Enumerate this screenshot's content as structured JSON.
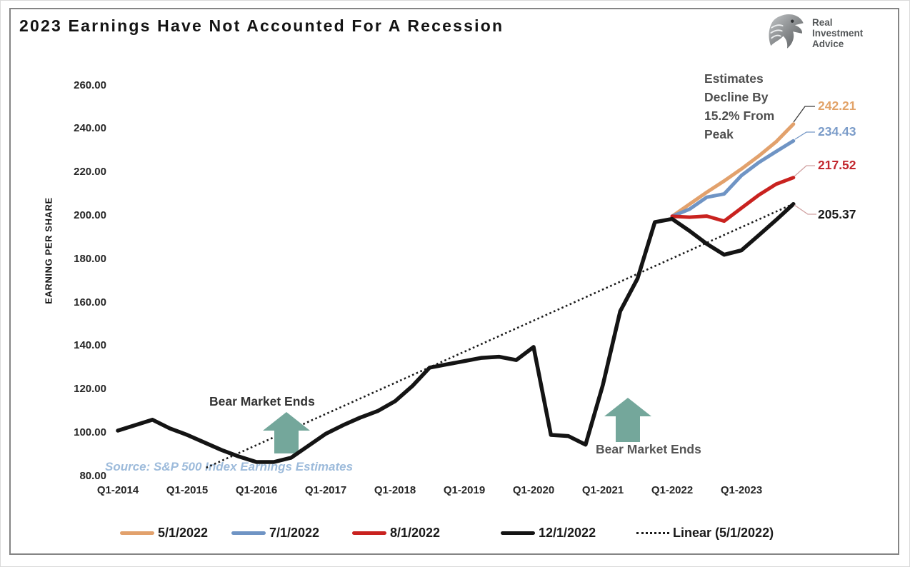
{
  "logo": {
    "name": "Real Investment Advice",
    "lines": [
      "Real",
      "Investment",
      "Advice"
    ]
  },
  "chart_data": {
    "type": "line",
    "title": "2023 Earnings Have Not Accounted For A Recession",
    "ylabel": "EARNING PER SHARE",
    "ylim": [
      80,
      260
    ],
    "grid": false,
    "legend_position": "bottom",
    "x_unit": "quarter",
    "x_start": "Q1-2014",
    "x_end": "Q4-2023",
    "ytick_values": [
      260,
      240,
      220,
      200,
      180,
      160,
      140,
      120,
      100,
      80
    ],
    "ytick_labels": [
      "260.00",
      "240.00",
      "220.00",
      "200.00",
      "180.00",
      "160.00",
      "140.00",
      "120.00",
      "100.00",
      "80.00"
    ],
    "xtick_labels": [
      "Q1-2014",
      "Q1-2015",
      "Q1-2016",
      "Q1-2017",
      "Q1-2018",
      "Q1-2019",
      "Q1-2020",
      "Q1-2021",
      "Q1-2022",
      "Q1-2023"
    ],
    "series": [
      {
        "name": "5/1/2022",
        "color": "#E2A16C",
        "label_color": "#E2A369",
        "start_quarter_index": 32,
        "values": [
          199.7,
          205.3,
          210.8,
          216.0,
          221.5,
          227.5,
          234.0,
          242.21
        ],
        "end_label": "242.21"
      },
      {
        "name": "7/1/2022",
        "color": "#6F94C4",
        "label_color": "#7B9CC9",
        "start_quarter_index": 32,
        "values": [
          199.7,
          203.0,
          208.5,
          210.0,
          218.5,
          224.5,
          229.5,
          234.43
        ],
        "end_label": "234.43"
      },
      {
        "name": "8/1/2022",
        "color": "#C9221F",
        "label_color": "#C2272E",
        "start_quarter_index": 32,
        "values": [
          199.7,
          199.3,
          199.8,
          197.5,
          203.5,
          209.5,
          214.5,
          217.52
        ],
        "end_label": "217.52"
      },
      {
        "name": "12/1/2022",
        "color": "#141414",
        "label_color": "#1a1a1a",
        "start_quarter_index": 0,
        "values": [
          101,
          103.5,
          106,
          102,
          99,
          95.5,
          92,
          89,
          86.5,
          86.5,
          88.5,
          94,
          99.5,
          103.5,
          107,
          110,
          114.5,
          121.5,
          130,
          131.5,
          133,
          134.5,
          135,
          133.5,
          139.5,
          99,
          98.5,
          94.5,
          122,
          156,
          171,
          197,
          198.5,
          193,
          187,
          182,
          184,
          191,
          198,
          205.37
        ],
        "end_label": "205.37"
      },
      {
        "name": "Linear (5/1/2022)",
        "style": "dotted",
        "color": "#1a1a1a",
        "trend": {
          "start_quarter_index": 5.1,
          "start_value": 83.9,
          "end_quarter_index": 39.1,
          "end_value": 205.8
        }
      }
    ],
    "annotations": {
      "estimates_note_lines": [
        "Estimates",
        "Decline By",
        "15.2% From",
        "Peak"
      ],
      "bear_market_1": "Bear Market Ends",
      "bear_market_2": "Bear Market Ends",
      "source": "Source: S&P 500 Index Earnings Estimates"
    }
  }
}
